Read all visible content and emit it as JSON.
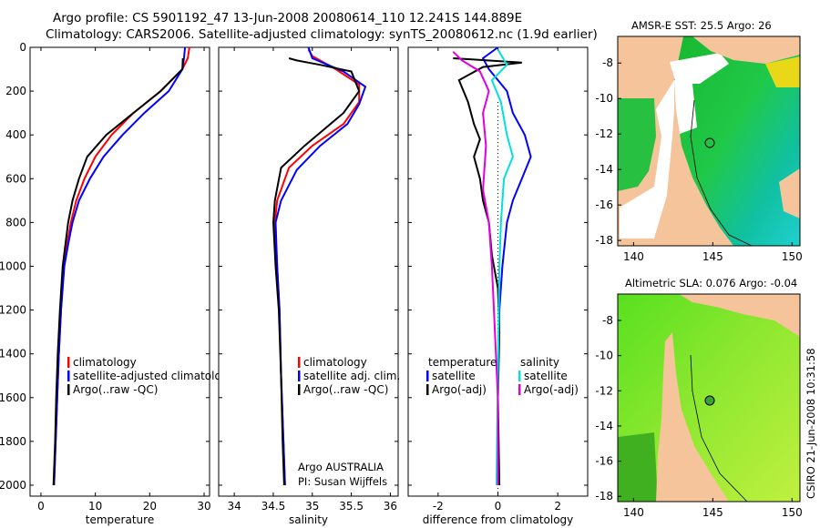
{
  "title": {
    "line1": "Argo profile: CS 5901192_47 13-Jun-2008 20080614_110 12.241S 144.889E",
    "line2": "Climatology: CARS2006. Satellite-adjusted climatology: synTS_20080612.nc (1.9d earlier)"
  },
  "footer": {
    "side_text": "CSIRO 21-Jun-2008 10:31:58",
    "institution": "Argo AUSTRALIA",
    "pi": "PI: Susan Wijffels"
  },
  "colors": {
    "climatology": "#ff0000",
    "satellite": "#0000ff",
    "argo": "#000000",
    "cyan": "#00e0e0",
    "magenta": "#e000e0",
    "land": "#f5c49a"
  },
  "chart_data": [
    {
      "type": "line",
      "name": "temperature-panel",
      "xlabel": "temperature",
      "ylabel": "",
      "xlim": [
        -2,
        31
      ],
      "ylim": [
        2050,
        0
      ],
      "x_ticks": [
        0,
        10,
        20,
        30
      ],
      "y_ticks": [
        0,
        200,
        400,
        600,
        800,
        1000,
        1200,
        1400,
        1600,
        1800,
        2000
      ],
      "legend_labels": [
        "climatology",
        "satellite-adjusted climatolog",
        "Argo(..raw -QC)"
      ],
      "series": [
        {
          "color": "climatology",
          "points": [
            [
              27.3,
              0
            ],
            [
              27,
              50
            ],
            [
              26,
              100
            ],
            [
              22,
              200
            ],
            [
              17,
              300
            ],
            [
              13,
              400
            ],
            [
              10,
              500
            ],
            [
              8,
              600
            ],
            [
              6.5,
              700
            ],
            [
              5.5,
              800
            ],
            [
              4.8,
              900
            ],
            [
              4.2,
              1000
            ],
            [
              3.7,
              1200
            ],
            [
              3.3,
              1400
            ],
            [
              3,
              1600
            ],
            [
              2.7,
              1800
            ],
            [
              2.4,
              2000
            ]
          ]
        },
        {
          "color": "satellite",
          "points": [
            [
              26.5,
              0
            ],
            [
              26.3,
              50
            ],
            [
              26,
              100
            ],
            [
              23.5,
              200
            ],
            [
              19,
              300
            ],
            [
              15,
              400
            ],
            [
              11.5,
              500
            ],
            [
              9,
              600
            ],
            [
              7,
              700
            ],
            [
              5.8,
              800
            ],
            [
              5,
              900
            ],
            [
              4.3,
              1000
            ],
            [
              3.7,
              1200
            ],
            [
              3.3,
              1400
            ],
            [
              3,
              1600
            ],
            [
              2.7,
              1800
            ],
            [
              2.4,
              2000
            ]
          ]
        },
        {
          "color": "argo",
          "points": [
            [
              26.1,
              50
            ],
            [
              26,
              100
            ],
            [
              22,
              200
            ],
            [
              17,
              300
            ],
            [
              12,
              400
            ],
            [
              8.5,
              500
            ],
            [
              7,
              600
            ],
            [
              5.8,
              700
            ],
            [
              5,
              800
            ],
            [
              4.5,
              900
            ],
            [
              4,
              1000
            ],
            [
              3.5,
              1200
            ],
            [
              3.1,
              1400
            ],
            [
              2.8,
              1600
            ],
            [
              2.6,
              1800
            ],
            [
              2.3,
              2000
            ]
          ]
        }
      ]
    },
    {
      "type": "line",
      "name": "salinity-panel",
      "xlabel": "salinity",
      "ylabel": "",
      "xlim": [
        33.8,
        36.1
      ],
      "ylim": [
        2050,
        0
      ],
      "x_ticks": [
        34,
        34.5,
        35,
        35.5,
        36
      ],
      "legend_labels": [
        "climatology",
        "satellite adj. clim.",
        "Argo(..raw -QC)"
      ],
      "series": [
        {
          "color": "climatology",
          "points": [
            [
              34.95,
              10
            ],
            [
              35.0,
              40
            ],
            [
              35.3,
              100
            ],
            [
              35.6,
              170
            ],
            [
              35.6,
              250
            ],
            [
              35.4,
              350
            ],
            [
              35.0,
              450
            ],
            [
              34.7,
              550
            ],
            [
              34.55,
              700
            ],
            [
              34.52,
              800
            ],
            [
              34.55,
              1000
            ],
            [
              34.58,
              1200
            ],
            [
              34.6,
              1500
            ],
            [
              34.63,
              1800
            ],
            [
              34.65,
              2000
            ]
          ]
        },
        {
          "color": "satellite",
          "points": [
            [
              34.95,
              0
            ],
            [
              35.0,
              50
            ],
            [
              35.4,
              110
            ],
            [
              35.68,
              180
            ],
            [
              35.6,
              260
            ],
            [
              35.45,
              350
            ],
            [
              35.1,
              450
            ],
            [
              34.8,
              560
            ],
            [
              34.6,
              700
            ],
            [
              34.53,
              800
            ],
            [
              34.55,
              1000
            ],
            [
              34.58,
              1200
            ],
            [
              34.6,
              1500
            ],
            [
              34.63,
              1800
            ],
            [
              34.65,
              2000
            ]
          ]
        },
        {
          "color": "argo",
          "points": [
            [
              34.7,
              50
            ],
            [
              34.8,
              60
            ],
            [
              35.1,
              80
            ],
            [
              35.5,
              110
            ],
            [
              35.6,
              200
            ],
            [
              35.4,
              300
            ],
            [
              34.9,
              450
            ],
            [
              34.6,
              550
            ],
            [
              34.52,
              700
            ],
            [
              34.5,
              800
            ],
            [
              34.53,
              1000
            ],
            [
              34.57,
              1200
            ],
            [
              34.6,
              1500
            ],
            [
              34.62,
              1800
            ],
            [
              34.64,
              2000
            ]
          ]
        }
      ]
    },
    {
      "type": "line",
      "name": "difference-panel",
      "xlabel": "difference from climatology",
      "ylabel": "",
      "xlim": [
        -3.0,
        3.0
      ],
      "ylim": [
        2050,
        0
      ],
      "x_ticks": [
        -2,
        0,
        2
      ],
      "legend_labels": [
        "temperature",
        "satellite",
        "Argo(-adj)",
        "salinity",
        "satellite",
        "Argo(-adj)"
      ],
      "series": [
        {
          "color": "satellite",
          "points": [
            [
              0,
              0
            ],
            [
              -0.5,
              50
            ],
            [
              -0.3,
              100
            ],
            [
              0.3,
              200
            ],
            [
              0.5,
              300
            ],
            [
              0.9,
              400
            ],
            [
              1.1,
              500
            ],
            [
              0.8,
              600
            ],
            [
              0.5,
              700
            ],
            [
              0.3,
              800
            ],
            [
              0.15,
              1000
            ],
            [
              0.05,
              1200
            ],
            [
              0,
              1500
            ],
            [
              0,
              2000
            ]
          ]
        },
        {
          "color": "argo",
          "points": [
            [
              -1.5,
              50
            ],
            [
              0.8,
              70
            ],
            [
              -0.5,
              90
            ],
            [
              -1.3,
              150
            ],
            [
              -1.0,
              250
            ],
            [
              -0.8,
              350
            ],
            [
              -0.6,
              420
            ],
            [
              -0.8,
              500
            ],
            [
              -0.6,
              600
            ],
            [
              -0.5,
              700
            ],
            [
              -0.3,
              800
            ],
            [
              -0.2,
              950
            ],
            [
              0,
              1100
            ],
            [
              0.05,
              1300
            ],
            [
              0,
              1600
            ],
            [
              0.05,
              2000
            ]
          ]
        },
        {
          "color": "cyan",
          "points": [
            [
              0,
              10
            ],
            [
              0.3,
              80
            ],
            [
              -0.2,
              150
            ],
            [
              0.1,
              250
            ],
            [
              0.3,
              400
            ],
            [
              0.5,
              500
            ],
            [
              0.2,
              600
            ],
            [
              0.1,
              800
            ],
            [
              0.05,
              1000
            ],
            [
              0,
              1500
            ],
            [
              -0.05,
              2000
            ]
          ]
        },
        {
          "color": "magenta",
          "points": [
            [
              -1.5,
              20
            ],
            [
              -1.2,
              60
            ],
            [
              -0.6,
              110
            ],
            [
              -0.3,
              200
            ],
            [
              -0.5,
              300
            ],
            [
              -0.4,
              450
            ],
            [
              -0.5,
              650
            ],
            [
              -0.3,
              800
            ],
            [
              -0.2,
              1000
            ],
            [
              -0.1,
              1300
            ],
            [
              0,
              1600
            ],
            [
              0,
              2000
            ]
          ]
        }
      ]
    },
    {
      "type": "heatmap",
      "name": "sst-map",
      "title": "AMSR-E SST: 25.5  Argo: 26",
      "x_ticks": [
        140,
        145,
        150
      ],
      "y_ticks": [
        -8,
        -10,
        -12,
        -14,
        -16,
        -18
      ],
      "xlim": [
        139,
        150.5
      ],
      "ylim": [
        -18.3,
        -6.5
      ],
      "argo_position": [
        144.889,
        -12.241
      ]
    },
    {
      "type": "heatmap",
      "name": "sla-map",
      "title": "Altimetric SLA: 0.076  Argo: -0.04",
      "x_ticks": [
        140,
        145,
        150
      ],
      "y_ticks": [
        -8,
        -10,
        -12,
        -14,
        -16,
        -18
      ],
      "xlim": [
        139,
        150.5
      ],
      "ylim": [
        -18.3,
        -6.5
      ],
      "argo_position": [
        144.889,
        -12.241
      ]
    }
  ]
}
